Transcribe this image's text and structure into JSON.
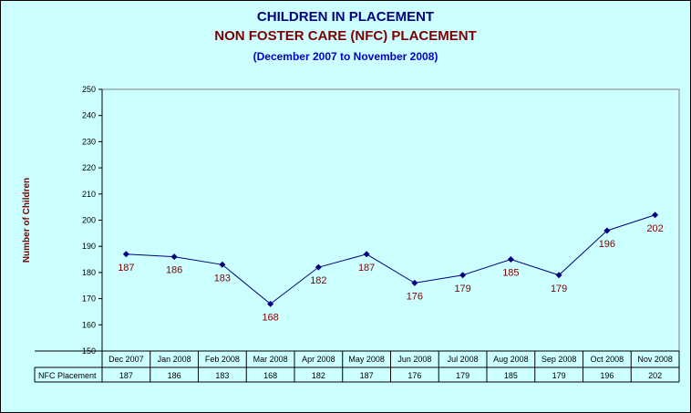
{
  "chart_data": {
    "type": "line",
    "title": "CHILDREN IN PLACEMENT",
    "subtitle": "NON FOSTER CARE (NFC) PLACEMENT",
    "subtitle2": "(December 2007 to November 2008)",
    "ylabel": "Number of Children",
    "xlabel": "",
    "ylim": [
      150,
      250
    ],
    "ytick_step": 10,
    "grid": false,
    "categories": [
      "Dec 2007",
      "Jan 2008",
      "Feb 2008",
      "Mar 2008",
      "Apr 2008",
      "May 2008",
      "Jun 2008",
      "Jul 2008",
      "Aug 2008",
      "Sep 2008",
      "Oct 2008",
      "Nov 2008"
    ],
    "series": [
      {
        "name": "NFC Placement",
        "values": [
          187,
          186,
          183,
          168,
          182,
          187,
          176,
          179,
          185,
          179,
          196,
          202
        ]
      }
    ],
    "data_table": true,
    "colors": {
      "background": "#ccffff",
      "line": "#000080",
      "data_label": "#800000",
      "title": "#000080",
      "subtitle": "#800000",
      "subtitle2": "#0000cc",
      "ylabel": "#800000"
    }
  }
}
